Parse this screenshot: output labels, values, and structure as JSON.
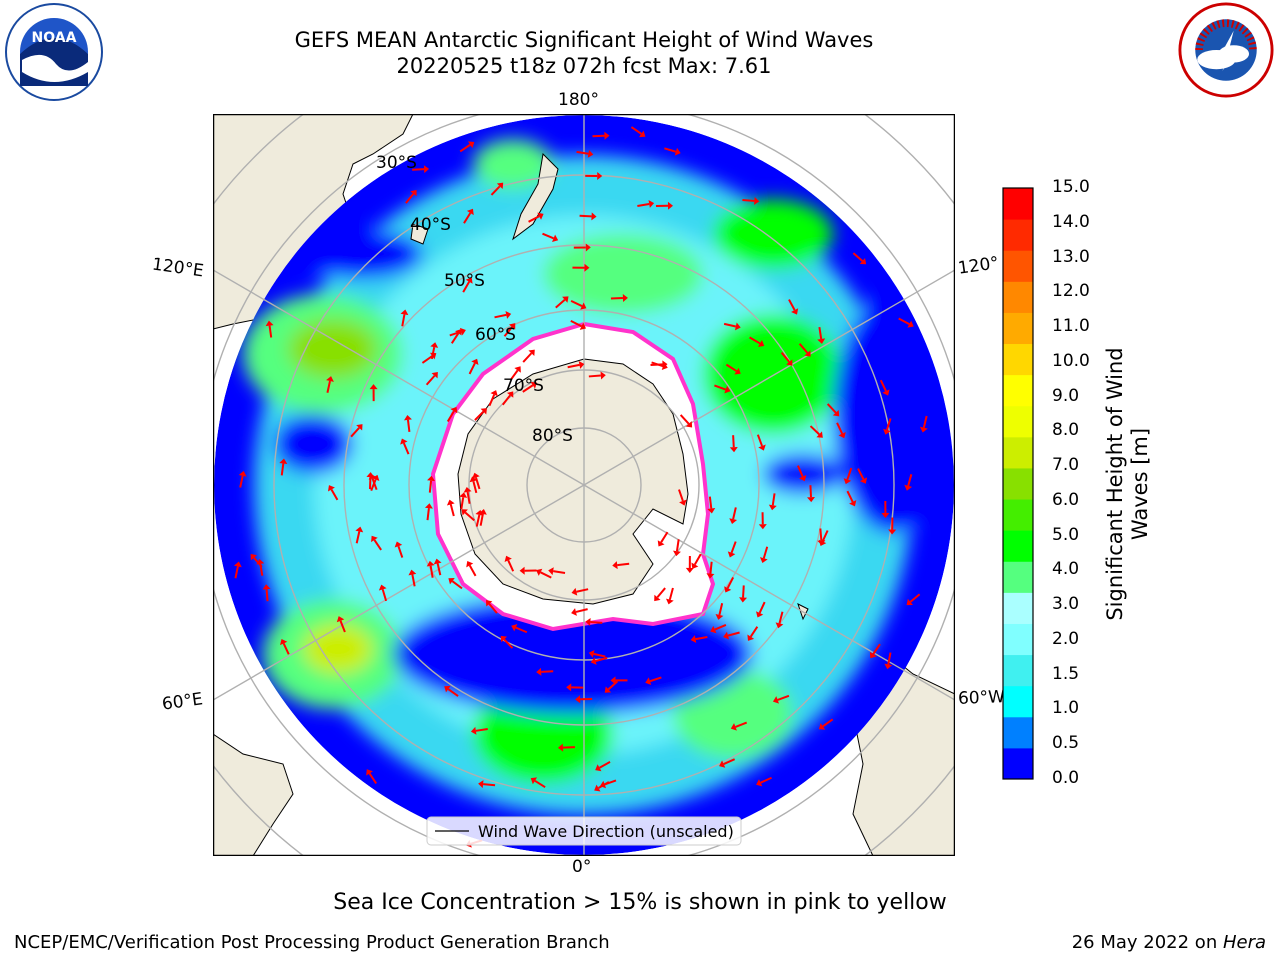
{
  "title_line1": "GEFS MEAN Antarctic Significant Height of Wind Waves",
  "title_line2": "20220525 t18z 072h fcst   Max: 7.61",
  "lon_labels": {
    "n180": "180°",
    "s0": "0°",
    "e120": "120°E",
    "w120": "120°",
    "e60": "60°E",
    "w60": "60°W"
  },
  "lat_labels": [
    "30°S",
    "40°S",
    "50°S",
    "60°S",
    "70°S",
    "80°S"
  ],
  "legend": {
    "label": "Wind Wave Direction (unscaled)"
  },
  "colorbar": {
    "label": "Significant Height of Wind Waves [m]",
    "ticks": [
      "15.0",
      "14.0",
      "13.0",
      "12.0",
      "11.0",
      "10.0",
      "9.0",
      "8.0",
      "7.0",
      "6.0",
      "5.0",
      "4.0",
      "3.0",
      "2.0",
      "1.5",
      "1.0",
      "0.5",
      "0.0"
    ],
    "colors_bottom_to_top": [
      "#0000ff",
      "#0080ff",
      "#00ffff",
      "#40f0f0",
      "#80ffff",
      "#aaffff",
      "#55ff7f",
      "#00ff00",
      "#44ee00",
      "#88e000",
      "#ccee00",
      "#eeff00",
      "#ffff00",
      "#ffd700",
      "#ffaa00",
      "#ff8800",
      "#ff5500",
      "#ff2a00",
      "#ff0000"
    ]
  },
  "subtitle": "Sea Ice Concentration > 15% is shown in pink to yellow",
  "footer": {
    "left": "NCEP/EMC/Verification Post Processing Product Generation Branch",
    "right_prefix": "26 May 2022 on ",
    "right_machine": "Hera"
  },
  "logos": {
    "left": "NOAA",
    "right": "NATIONAL WEATHER SERVICE"
  },
  "colors": {
    "land": "#efebdc",
    "sea_ice": "#ffffff",
    "ice_edge": "#ff33cc",
    "arrow": "#ff0000",
    "grid": "#b0b0b0"
  }
}
